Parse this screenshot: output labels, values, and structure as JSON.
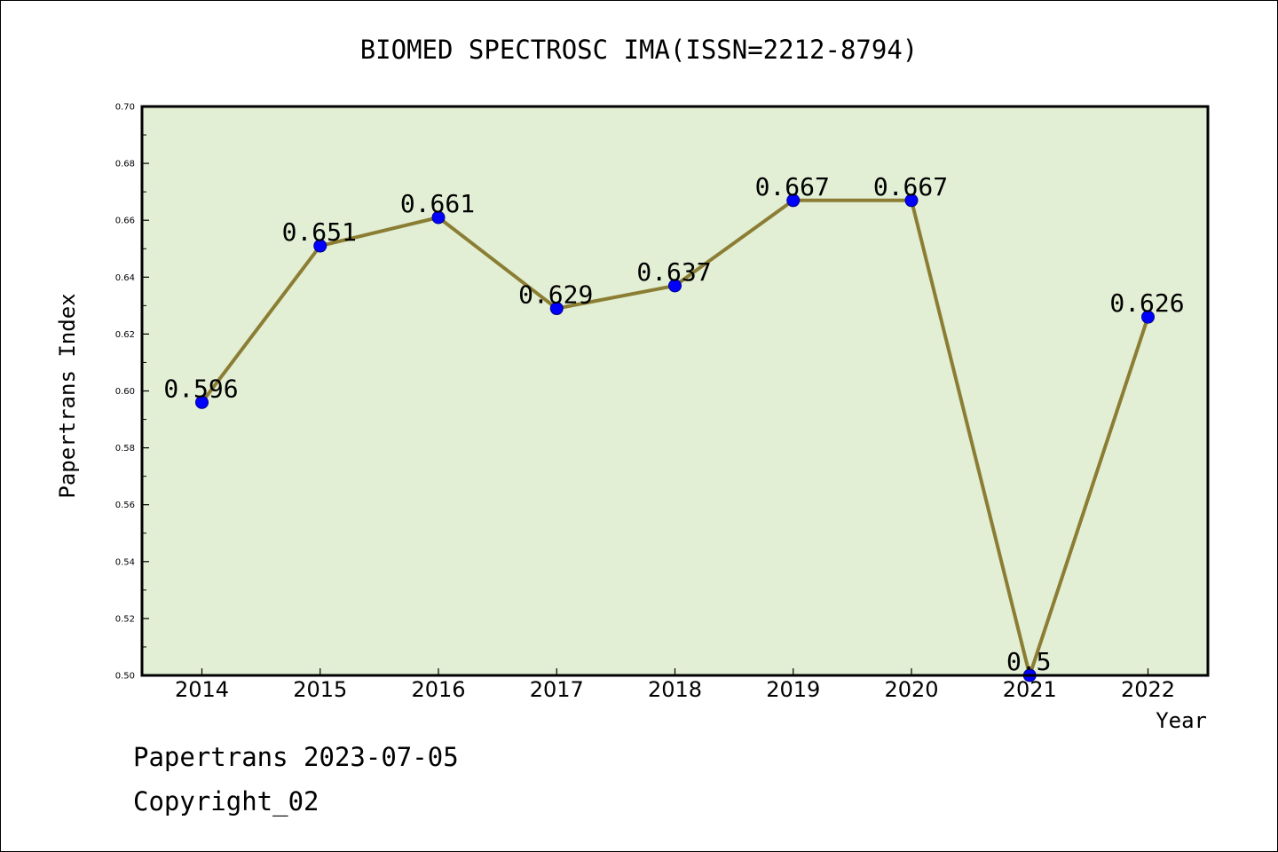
{
  "chart_data": {
    "type": "line",
    "title": "BIOMED SPECTROSC IMA(ISSN=2212-8794)",
    "xlabel": "Year",
    "ylabel": "Papertrans Index",
    "categories": [
      "2014",
      "2015",
      "2016",
      "2017",
      "2018",
      "2019",
      "2020",
      "2021",
      "2022"
    ],
    "values": [
      0.596,
      0.651,
      0.661,
      0.629,
      0.637,
      0.667,
      0.667,
      0.5,
      0.626
    ],
    "data_labels": [
      "0.596",
      "0.651",
      "0.661",
      "0.629",
      "0.637",
      "0.667",
      "0.667",
      "0.5",
      "0.626"
    ],
    "ylim": [
      0.5,
      0.7
    ],
    "y_ticks": [
      "0.50",
      "0.52",
      "0.54",
      "0.56",
      "0.58",
      "0.60",
      "0.62",
      "0.64",
      "0.66",
      "0.68",
      "0.70"
    ],
    "grid": false,
    "legend": "none",
    "colors": {
      "plot_background": "#e2efd4",
      "line": "#8b7d33",
      "marker": "#0000ff"
    }
  },
  "footer": {
    "source": "Papertrans 2023-07-05",
    "copyright": "Copyright_02"
  }
}
